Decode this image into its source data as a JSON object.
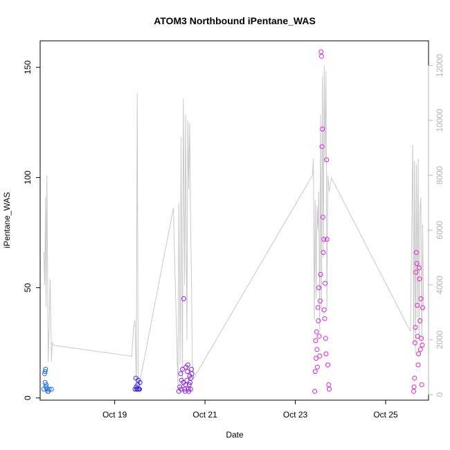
{
  "chart_data": {
    "type": "scatter",
    "title": "ATOM3 Northbound iPentane_WAS",
    "xlabel": "Date",
    "ylabel": "iPentane_WAS",
    "x_unit": "days of October",
    "xlim": [
      17.35,
      25.95
    ],
    "ylim": [
      -1,
      162
    ],
    "y2lim": [
      -200,
      12900
    ],
    "x_ticks": [
      19,
      21,
      23,
      25
    ],
    "x_tick_labels": [
      "Oct 19",
      "Oct 21",
      "Oct 23",
      "Oct 25"
    ],
    "y_ticks": [
      0,
      50,
      100,
      150
    ],
    "y_tick_labels": [
      "0",
      "50",
      "100",
      "150"
    ],
    "y2_ticks": [
      0,
      2000,
      4000,
      6000,
      8000,
      10000,
      12000
    ],
    "y2_tick_labels": [
      "0",
      "2000",
      "4000",
      "6000",
      "8000",
      "10000",
      "12000"
    ],
    "grid": false,
    "legend": "none",
    "colors": {
      "early": "#1e6be5",
      "mid": "#3a1ee5",
      "late_mid": "#8b1ee5",
      "late": "#e01ee5",
      "final": "#f01ec8",
      "line": "#c8c8c8"
    },
    "series": [
      {
        "name": "",
        "kind": "points",
        "color_key": "early",
        "x": [
          17.43,
          17.45,
          17.46,
          17.46,
          17.47,
          17.48,
          17.48,
          17.5,
          17.52,
          17.53,
          17.55,
          17.6
        ],
        "y": [
          4,
          11,
          12,
          7,
          13,
          6,
          5,
          4,
          3,
          3,
          4,
          4
        ]
      },
      {
        "name": "",
        "kind": "points",
        "color_key": "mid",
        "x": [
          19.45,
          19.47,
          19.48,
          19.49,
          19.5,
          19.51,
          19.52,
          19.53,
          19.54,
          19.55,
          19.56
        ],
        "y": [
          4,
          9,
          5,
          4,
          4,
          6,
          8,
          4,
          4,
          4,
          7
        ]
      },
      {
        "name": "",
        "kind": "points",
        "color_key": "late_mid",
        "x": [
          20.42,
          20.44,
          20.46,
          20.47,
          20.48,
          20.5,
          20.52,
          20.53,
          20.55,
          20.56,
          20.57,
          20.58,
          20.6,
          20.61,
          20.62,
          20.63,
          20.64,
          20.65,
          20.66,
          20.67,
          20.68,
          20.69,
          20.7,
          20.71
        ],
        "y": [
          3,
          5,
          11,
          4,
          8,
          13,
          7,
          45,
          4,
          3,
          6,
          14,
          8,
          12,
          15,
          4,
          3,
          6,
          10,
          7,
          4,
          9,
          13,
          11
        ]
      },
      {
        "name": "",
        "kind": "points",
        "color_key": "late",
        "x": [
          23.43,
          23.44,
          23.45,
          23.46,
          23.47,
          23.48,
          23.49,
          23.5,
          23.51,
          23.52,
          23.53,
          23.54,
          23.55,
          23.56,
          23.57,
          23.58,
          23.59,
          23.6,
          23.61,
          23.62,
          23.63,
          23.64,
          23.65,
          23.66,
          23.67,
          23.68,
          23.69,
          23.7,
          23.72,
          23.74,
          23.75
        ],
        "y": [
          3,
          12,
          26,
          18,
          30,
          22,
          14,
          41,
          35,
          50,
          28,
          19,
          44,
          56,
          157,
          155,
          114,
          122,
          82,
          66,
          72,
          40,
          36,
          52,
          27,
          20,
          108,
          72,
          15,
          6,
          4
        ]
      },
      {
        "name": "",
        "kind": "points",
        "color_key": "final",
        "x": [
          25.62,
          25.63,
          25.64,
          25.65,
          25.66,
          25.67,
          25.68,
          25.69,
          25.7,
          25.71,
          25.72,
          25.73,
          25.74,
          25.75,
          25.76,
          25.77,
          25.78,
          25.79,
          25.8,
          25.81,
          25.82
        ],
        "y": [
          3,
          5,
          9,
          25,
          32,
          57,
          66,
          61,
          42,
          28,
          15,
          20,
          59,
          54,
          35,
          22,
          45,
          27,
          6,
          24,
          41
        ]
      },
      {
        "name": "",
        "kind": "line",
        "axis": "right",
        "color_key": "line",
        "x": [
          17.43,
          17.45,
          17.47,
          17.48,
          17.5,
          17.52,
          17.53,
          17.55,
          17.57,
          17.6,
          17.62,
          17.65,
          19.38,
          19.42,
          19.45,
          19.48,
          19.5,
          19.52,
          19.55,
          20.3,
          20.4,
          20.42,
          20.45,
          20.47,
          20.5,
          20.52,
          20.55,
          20.57,
          20.6,
          20.62,
          20.64,
          20.66,
          20.68,
          20.7,
          20.72,
          20.75,
          23.38,
          23.4,
          23.42,
          23.44,
          23.46,
          23.48,
          23.5,
          23.52,
          23.54,
          23.56,
          23.58,
          23.6,
          23.62,
          23.64,
          23.66,
          23.68,
          23.7,
          23.72,
          23.75,
          23.8,
          25.55,
          25.6,
          25.62,
          25.64,
          25.66,
          25.68,
          25.7,
          25.72,
          25.74,
          25.76,
          25.78,
          25.8,
          25.82,
          25.84
        ],
        "y": [
          5200,
          4000,
          7200,
          3200,
          8000,
          3000,
          1200,
          2500,
          4200,
          1200,
          1900,
          1800,
          1400,
          2500,
          2700,
          300,
          11000,
          800,
          400,
          6800,
          300,
          7000,
          1100,
          9400,
          300,
          10800,
          4000,
          10200,
          2000,
          10000,
          7500,
          9900,
          6500,
          4200,
          1200,
          600,
          8000,
          8600,
          2700,
          7100,
          3500,
          6900,
          6000,
          7400,
          2300,
          10200,
          3000,
          11600,
          5000,
          12000,
          8500,
          11800,
          3100,
          8000,
          7400,
          7900,
          2300,
          9100,
          1900,
          8500,
          1500,
          8400,
          2800,
          8600,
          2000,
          6700,
          7200,
          1800,
          6200,
          3000
        ]
      }
    ]
  }
}
